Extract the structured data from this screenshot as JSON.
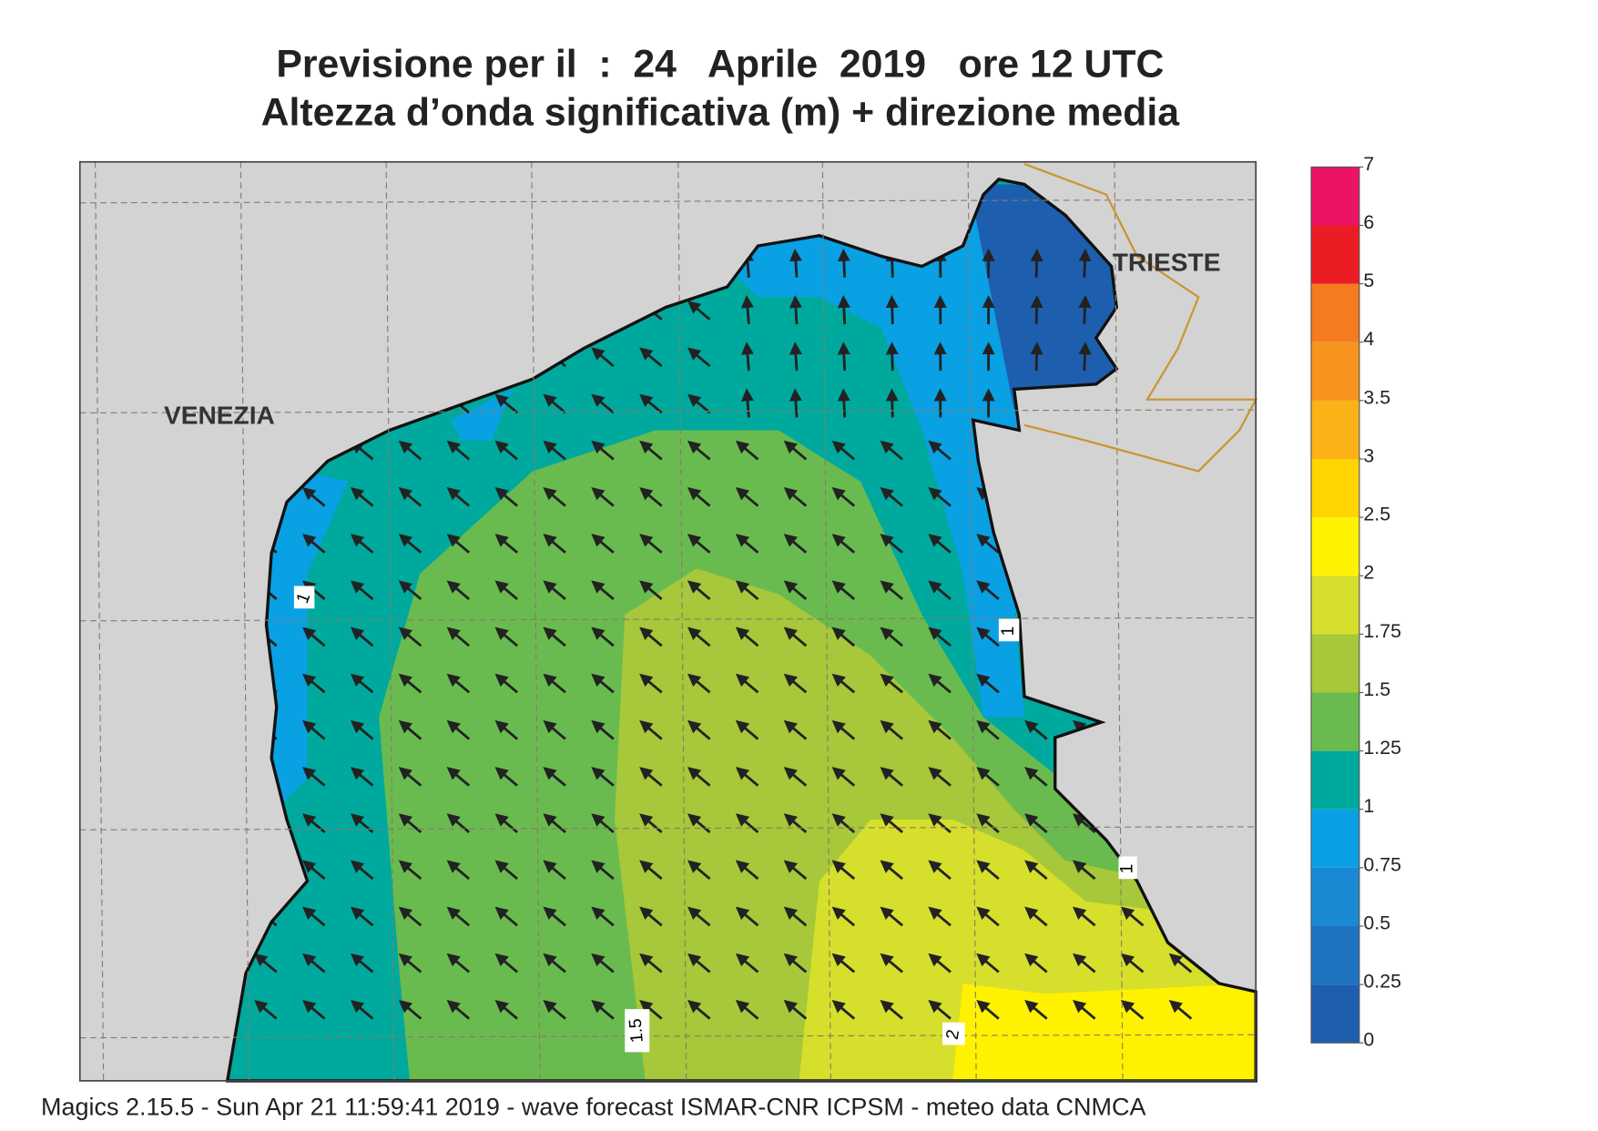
{
  "header": {
    "title": "Previsione per il  :  24   Aprile  2019   ore 12 UTC",
    "subtitle": "Altezza d’onda significativa (m) + direzione media"
  },
  "map": {
    "places": [
      "VENEZIA",
      "TRIESTE"
    ],
    "contour_labels": [
      "1",
      "1",
      "1",
      "1.5",
      "2"
    ]
  },
  "colorbar": {
    "ticks": [
      0,
      0.25,
      0.5,
      0.75,
      1,
      1.25,
      1.5,
      1.75,
      2,
      2.5,
      3,
      3.5,
      4,
      5,
      6,
      7
    ],
    "colors": [
      "#1d5fae",
      "#1f74c2",
      "#1b88d4",
      "#0aa0e4",
      "#00a99d",
      "#6abb4f",
      "#a6c83a",
      "#d6df2b",
      "#fff200",
      "#ffd400",
      "#fbb217",
      "#f7941d",
      "#f47b20",
      "#ec1c24",
      "#ec1265"
    ]
  },
  "footer": "Magics 2.15.5 - Sun Apr 21 11:59:41 2019 - wave forecast  ISMAR-CNR  ICPSM - meteo data   CNMCA"
}
